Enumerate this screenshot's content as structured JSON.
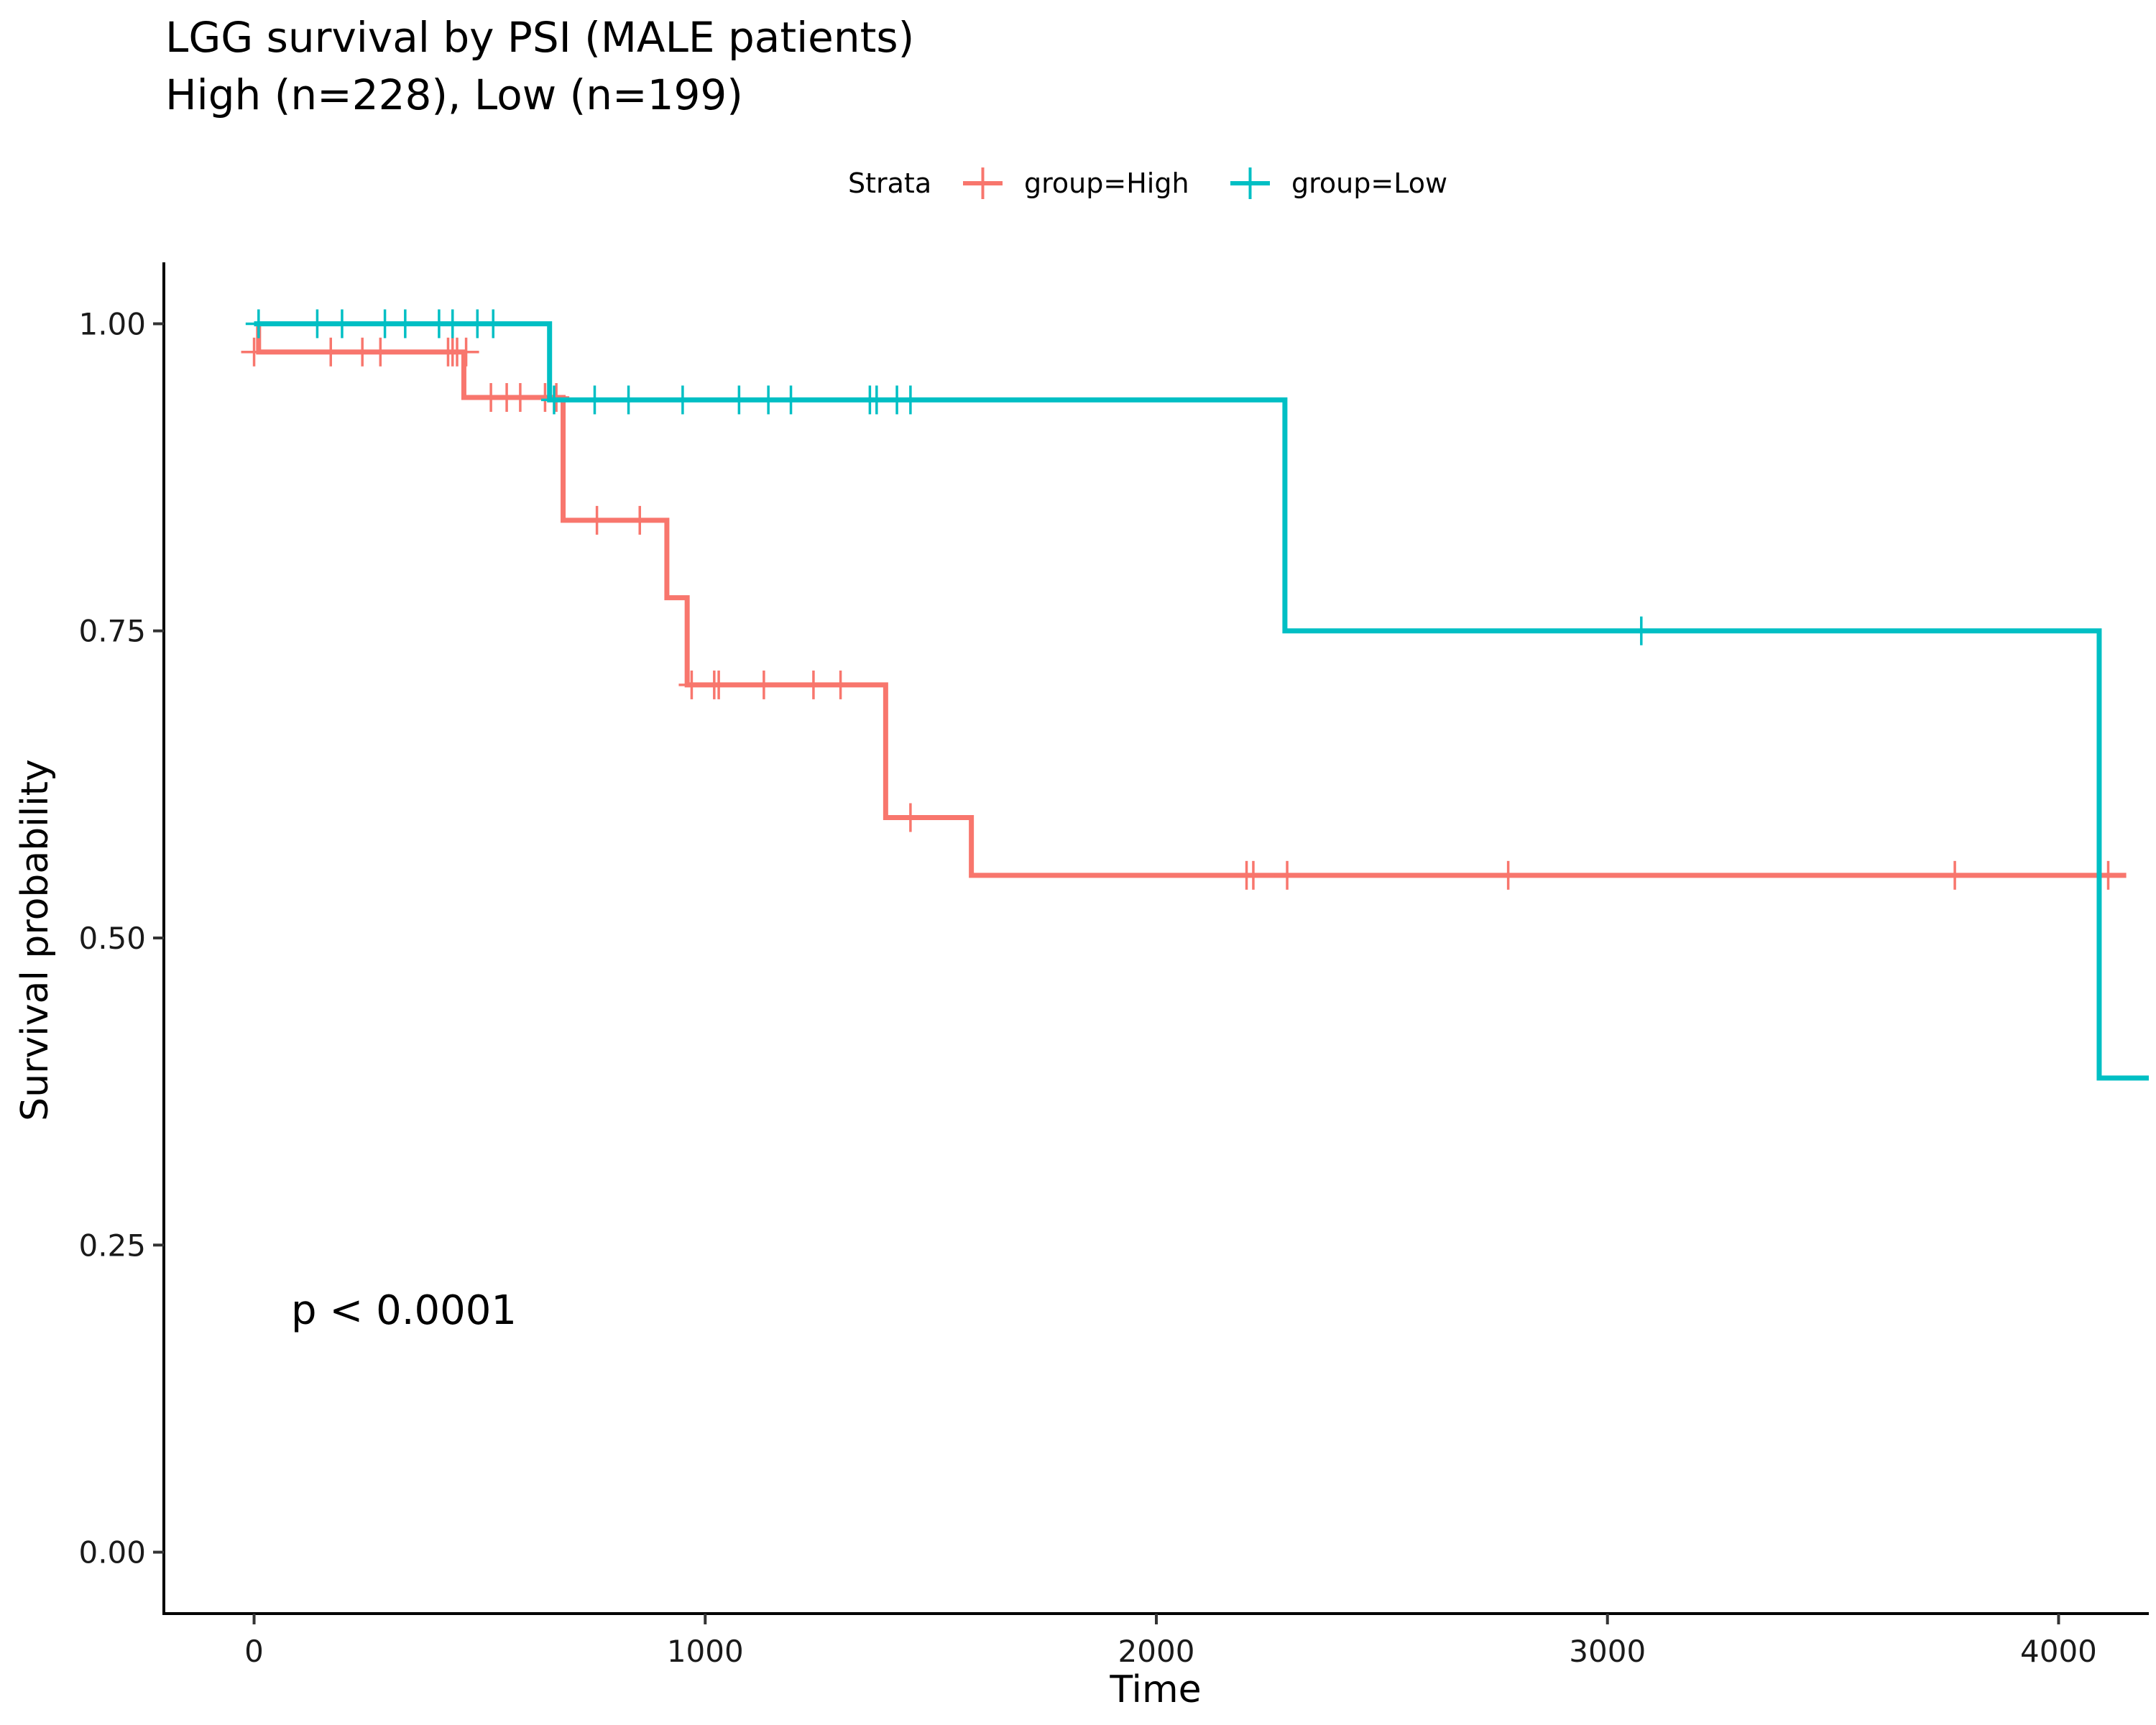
{
  "chart_data": {
    "type": "line",
    "step": true,
    "title": "LGG survival by PSI (MALE patients)",
    "subtitle": "High (n=228), Low (n=199)",
    "xlabel": "Time",
    "ylabel": "Survival probability",
    "xlim": [
      -200,
      4200
    ],
    "ylim": [
      -0.05,
      1.05
    ],
    "x_ticks": [
      0,
      1000,
      2000,
      3000,
      4000
    ],
    "x_tick_labels": [
      "0",
      "1000",
      "2000",
      "3000",
      "4000"
    ],
    "y_ticks": [
      0,
      0.25,
      0.5,
      0.75,
      1.0
    ],
    "y_tick_labels": [
      "0.00",
      "0.25",
      "0.50",
      "0.75",
      "1.00"
    ],
    "grid": false,
    "legend": {
      "title": "Strata",
      "position": "top",
      "entries": [
        "group=High",
        "group=Low"
      ]
    },
    "annotation": "p < 0.0001",
    "series": [
      {
        "name": "group=High",
        "color": "#F8766D",
        "steps": [
          [
            0,
            1.0
          ],
          [
            10,
            0.977
          ],
          [
            465,
            0.94
          ],
          [
            685,
            0.84
          ],
          [
            915,
            0.777
          ],
          [
            960,
            0.706
          ],
          [
            1400,
            0.598
          ],
          [
            1590,
            0.551
          ],
          [
            4150,
            0.551
          ]
        ],
        "censored": [
          [
            0,
            0.977
          ],
          [
            170,
            0.977
          ],
          [
            240,
            0.977
          ],
          [
            280,
            0.977
          ],
          [
            430,
            0.977
          ],
          [
            440,
            0.977
          ],
          [
            450,
            0.977
          ],
          [
            470,
            0.977
          ],
          [
            525,
            0.94
          ],
          [
            560,
            0.94
          ],
          [
            590,
            0.94
          ],
          [
            645,
            0.94
          ],
          [
            670,
            0.94
          ],
          [
            760,
            0.84
          ],
          [
            855,
            0.84
          ],
          [
            970,
            0.706
          ],
          [
            1020,
            0.706
          ],
          [
            1030,
            0.706
          ],
          [
            1130,
            0.706
          ],
          [
            1240,
            0.706
          ],
          [
            1300,
            0.706
          ],
          [
            1455,
            0.598
          ],
          [
            2200,
            0.551
          ],
          [
            2215,
            0.551
          ],
          [
            2290,
            0.551
          ],
          [
            2780,
            0.551
          ],
          [
            3770,
            0.551
          ],
          [
            4110,
            0.551
          ]
        ]
      },
      {
        "name": "group=Low",
        "color": "#00BFC4",
        "steps": [
          [
            0,
            1.0
          ],
          [
            655,
            0.938
          ],
          [
            2285,
            0.75
          ],
          [
            4090,
            0.386
          ],
          [
            4200,
            0.386
          ]
        ],
        "censored": [
          [
            10,
            1.0
          ],
          [
            140,
            1.0
          ],
          [
            195,
            1.0
          ],
          [
            290,
            1.0
          ],
          [
            335,
            1.0
          ],
          [
            410,
            1.0
          ],
          [
            440,
            1.0
          ],
          [
            495,
            1.0
          ],
          [
            530,
            1.0
          ],
          [
            665,
            0.938
          ],
          [
            755,
            0.938
          ],
          [
            830,
            0.938
          ],
          [
            950,
            0.938
          ],
          [
            1075,
            0.938
          ],
          [
            1140,
            0.938
          ],
          [
            1190,
            0.938
          ],
          [
            1365,
            0.938
          ],
          [
            1380,
            0.938
          ],
          [
            1425,
            0.938
          ],
          [
            1455,
            0.938
          ],
          [
            3075,
            0.75
          ]
        ]
      }
    ]
  }
}
